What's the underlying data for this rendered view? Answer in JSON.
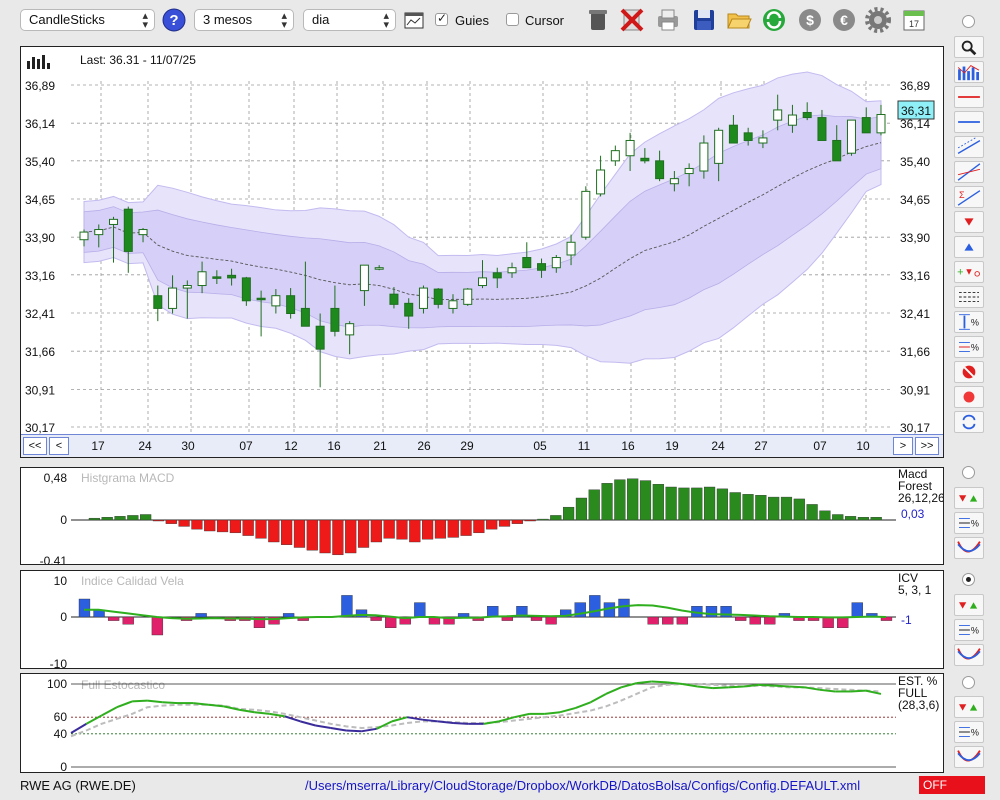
{
  "toolbar": {
    "chart_style": "CandleSticks",
    "period": "3 mesos",
    "interval": "dia",
    "guides_label": "Guies",
    "guides_checked": true,
    "cursor_label": "Cursor",
    "cursor_checked": false,
    "calendar_day": "17"
  },
  "price_panel": {
    "last_label": "Last: 36.31 - 11/07/25",
    "y_ticks": [
      "36,89",
      "36,14",
      "35,40",
      "34,65",
      "33,90",
      "33,16",
      "32,41",
      "31,66",
      "30,91",
      "30,17"
    ],
    "current_price_tag": "36,31",
    "nav": {
      "first": "<<",
      "prev": "<",
      "next": ">",
      "last": ">>"
    },
    "x_ticks": [
      "17",
      "24",
      "30",
      "07",
      "12",
      "16",
      "21",
      "26",
      "29",
      "05",
      "11",
      "16",
      "19",
      "24",
      "27",
      "07",
      "10"
    ],
    "colors": {
      "up": "#ffffff",
      "down": "#1e8a1e",
      "band": "#dcd6f7",
      "band_edge": "#b7aee8"
    }
  },
  "macd_panel": {
    "title": "Histgrama MACD",
    "y_ticks": [
      "0,48",
      "0",
      "-0,41"
    ],
    "legend": [
      "Macd",
      "Forest",
      "26,12,26"
    ],
    "value": "0,03",
    "colors": {
      "positive": "#2a8a1e",
      "negative": "#ee1a1a"
    }
  },
  "icv_panel": {
    "title": "Indice Calidad Vela",
    "y_ticks": [
      "10",
      "0",
      "-10"
    ],
    "legend": [
      "ICV",
      "5, 3, 1"
    ],
    "value": "-1",
    "colors": {
      "positive": "#2b5fe0",
      "negative": "#e0206a",
      "line": "#2fae1e"
    }
  },
  "stoch_panel": {
    "title": "Full Estocastico",
    "y_ticks": [
      "100",
      "60",
      "40",
      "0"
    ],
    "legend": [
      "EST. %",
      "FULL",
      "(28,3,6)"
    ],
    "colors": {
      "k_line": "#2fae1e",
      "k_line_low": "#3a2c9a",
      "d_line": "#bdbdbd"
    }
  },
  "footer": {
    "symbol": "RWE AG (RWE.DE)",
    "config_path": "/Users/mserra/Library/CloudStorage/Dropbox/WorkDB/DatosBolsa/Configs/Config.DEFAULT.xml",
    "status_button": "OFF"
  },
  "chart_data": [
    {
      "type": "candlestick",
      "title": "",
      "ylim": [
        30.17,
        37.3
      ],
      "y_tick_values": [
        36.89,
        36.14,
        35.4,
        34.65,
        33.9,
        33.16,
        32.41,
        31.66,
        30.91,
        30.17
      ],
      "series": [
        {
          "name": "price",
          "ohlc": [
            [
              33.85,
              34.05,
              33.72,
              34.0
            ],
            [
              33.95,
              34.15,
              33.7,
              34.05
            ],
            [
              34.15,
              34.3,
              33.4,
              34.25
            ],
            [
              34.45,
              34.5,
              33.2,
              33.62
            ],
            [
              33.95,
              34.08,
              33.8,
              34.05
            ],
            [
              32.75,
              32.95,
              32.25,
              32.5
            ],
            [
              32.5,
              33.15,
              32.4,
              32.9
            ],
            [
              32.9,
              33.05,
              32.3,
              32.95
            ],
            [
              32.95,
              33.42,
              32.8,
              33.22
            ],
            [
              33.12,
              33.25,
              32.98,
              33.1
            ],
            [
              33.15,
              33.28,
              32.95,
              33.1
            ],
            [
              33.1,
              33.12,
              32.55,
              32.65
            ],
            [
              32.7,
              32.85,
              31.95,
              32.68
            ],
            [
              32.55,
              32.88,
              32.4,
              32.75
            ],
            [
              32.75,
              32.9,
              32.3,
              32.4
            ],
            [
              32.5,
              33.42,
              32.15,
              32.15
            ],
            [
              32.15,
              32.4,
              30.95,
              31.7
            ],
            [
              32.5,
              32.95,
              31.95,
              32.05
            ],
            [
              31.98,
              32.25,
              31.6,
              32.2
            ],
            [
              32.85,
              33.35,
              32.55,
              33.35
            ],
            [
              33.3,
              33.35,
              33.25,
              33.3
            ],
            [
              32.78,
              32.92,
              32.5,
              32.58
            ],
            [
              32.6,
              32.7,
              32.1,
              32.35
            ],
            [
              32.5,
              32.95,
              32.4,
              32.9
            ],
            [
              32.88,
              32.9,
              32.5,
              32.58
            ],
            [
              32.5,
              32.78,
              32.4,
              32.65
            ],
            [
              32.58,
              32.9,
              32.55,
              32.88
            ],
            [
              32.95,
              33.45,
              32.9,
              33.1
            ],
            [
              33.2,
              33.3,
              32.9,
              33.1
            ],
            [
              33.2,
              33.4,
              33.1,
              33.3
            ],
            [
              33.5,
              33.8,
              33.3,
              33.3
            ],
            [
              33.38,
              33.48,
              33.1,
              33.25
            ],
            [
              33.3,
              33.55,
              33.2,
              33.5
            ],
            [
              33.55,
              33.95,
              33.35,
              33.8
            ],
            [
              33.9,
              34.9,
              33.85,
              34.8
            ],
            [
              34.75,
              35.5,
              34.7,
              35.22
            ],
            [
              35.4,
              35.7,
              35.3,
              35.6
            ],
            [
              35.5,
              35.95,
              35.2,
              35.8
            ],
            [
              35.45,
              35.65,
              35.35,
              35.4
            ],
            [
              35.4,
              35.6,
              35.0,
              35.05
            ],
            [
              34.95,
              35.2,
              34.8,
              35.05
            ],
            [
              35.15,
              35.35,
              34.9,
              35.25
            ],
            [
              35.2,
              35.9,
              35.05,
              35.75
            ],
            [
              35.35,
              36.05,
              35.0,
              36.0
            ],
            [
              36.1,
              36.3,
              35.75,
              35.75
            ],
            [
              35.95,
              36.05,
              35.7,
              35.8
            ],
            [
              35.75,
              36.0,
              35.65,
              35.85
            ],
            [
              36.2,
              36.7,
              36.0,
              36.4
            ],
            [
              36.1,
              36.5,
              35.95,
              36.3
            ],
            [
              36.35,
              36.55,
              36.2,
              36.25
            ],
            [
              36.25,
              36.4,
              35.85,
              35.8
            ],
            [
              35.8,
              36.1,
              35.4,
              35.4
            ],
            [
              35.55,
              36.2,
              35.5,
              36.2
            ],
            [
              36.25,
              36.45,
              35.95,
              35.95
            ],
            [
              35.95,
              36.5,
              35.9,
              36.31
            ]
          ]
        }
      ],
      "x_tick_labels": [
        "17",
        "24",
        "30",
        "07",
        "12",
        "16",
        "21",
        "26",
        "29",
        "05",
        "11",
        "16",
        "19",
        "24",
        "27",
        "07",
        "10"
      ]
    },
    {
      "type": "bar",
      "title": "Histgrama MACD",
      "ylim": [
        -0.41,
        0.48
      ],
      "values": [
        0.02,
        0.03,
        0.04,
        0.05,
        0.06,
        -0.01,
        -0.04,
        -0.07,
        -0.1,
        -0.12,
        -0.13,
        -0.14,
        -0.17,
        -0.2,
        -0.24,
        -0.27,
        -0.3,
        -0.33,
        -0.36,
        -0.38,
        -0.36,
        -0.3,
        -0.24,
        -0.2,
        -0.21,
        -0.24,
        -0.21,
        -0.2,
        -0.19,
        -0.17,
        -0.14,
        -0.1,
        -0.07,
        -0.04,
        -0.01,
        0.01,
        0.05,
        0.14,
        0.24,
        0.33,
        0.4,
        0.44,
        0.45,
        0.43,
        0.39,
        0.36,
        0.35,
        0.35,
        0.36,
        0.34,
        0.3,
        0.28,
        0.27,
        0.25,
        0.25,
        0.23,
        0.17,
        0.1,
        0.06,
        0.04,
        0.03,
        0.03
      ]
    },
    {
      "type": "bar",
      "title": "Indice Calidad Vela",
      "ylim": [
        -10,
        10
      ],
      "values": [
        5,
        2,
        -1,
        -2,
        0,
        -5,
        0,
        -1,
        1,
        0,
        -1,
        -1,
        -3,
        -2,
        1,
        -1,
        0,
        0,
        6,
        2,
        -1,
        -3,
        -2,
        4,
        -2,
        -2,
        1,
        -1,
        3,
        -1,
        3,
        -1,
        -2,
        2,
        4,
        6,
        4,
        5,
        0,
        -2,
        -2,
        -2,
        3,
        3,
        3,
        -1,
        -2,
        -2,
        1,
        -1,
        -1,
        -3,
        -3,
        4,
        1,
        -1
      ],
      "series": [
        {
          "name": "",
          "values": [
            2,
            2,
            1.5,
            1,
            0.5,
            0,
            -0.3,
            -0.5,
            -0.4,
            -0.3,
            -0.4,
            -0.4,
            -0.6,
            -0.6,
            -0.3,
            -0.1,
            0,
            0,
            0.3,
            0.6,
            0.5,
            0.1,
            -0.3,
            0,
            0,
            -0.3,
            -0.2,
            -0.2,
            0.1,
            0.2,
            0.4,
            0.3,
            0.2,
            0.3,
            0.9,
            1.6,
            2.4,
            3,
            3.3,
            3.2,
            2.6,
            1.8,
            1.2,
            0.8,
            0.7,
            0.6,
            0.4,
            0.2,
            0.1,
            0,
            0,
            -0.1,
            -0.1,
            0,
            0.1,
            0
          ]
        }
      ]
    },
    {
      "type": "line",
      "title": "Full Estocastico",
      "ylim": [
        0,
        100
      ],
      "series": [
        {
          "name": "",
          "values": [
            41,
            52,
            62,
            72,
            79,
            80,
            78,
            77,
            77,
            75,
            73,
            69,
            66,
            64,
            61,
            55,
            50,
            47,
            44,
            43,
            46,
            55,
            60,
            57,
            55,
            53,
            52,
            52,
            55,
            60,
            64,
            64,
            66,
            71,
            78,
            88,
            96,
            101,
            103,
            102,
            100,
            97,
            95,
            96,
            97,
            99,
            98,
            97,
            96,
            93,
            91,
            91,
            92,
            88
          ]
        },
        {
          "name": "",
          "values": [
            37,
            44,
            52,
            58,
            64,
            72,
            74,
            75,
            75,
            75,
            74,
            70,
            69,
            67,
            64,
            60,
            56,
            52,
            49,
            47,
            48,
            50,
            53,
            55,
            55,
            54,
            53,
            53,
            54,
            56,
            58,
            60,
            62,
            65,
            68,
            73,
            80,
            88,
            96,
            99,
            100,
            100,
            99,
            98,
            97,
            98,
            97,
            96,
            96,
            95,
            94,
            93,
            92,
            91
          ]
        }
      ],
      "reference_lines": [
        100,
        60,
        40,
        0
      ]
    }
  ]
}
